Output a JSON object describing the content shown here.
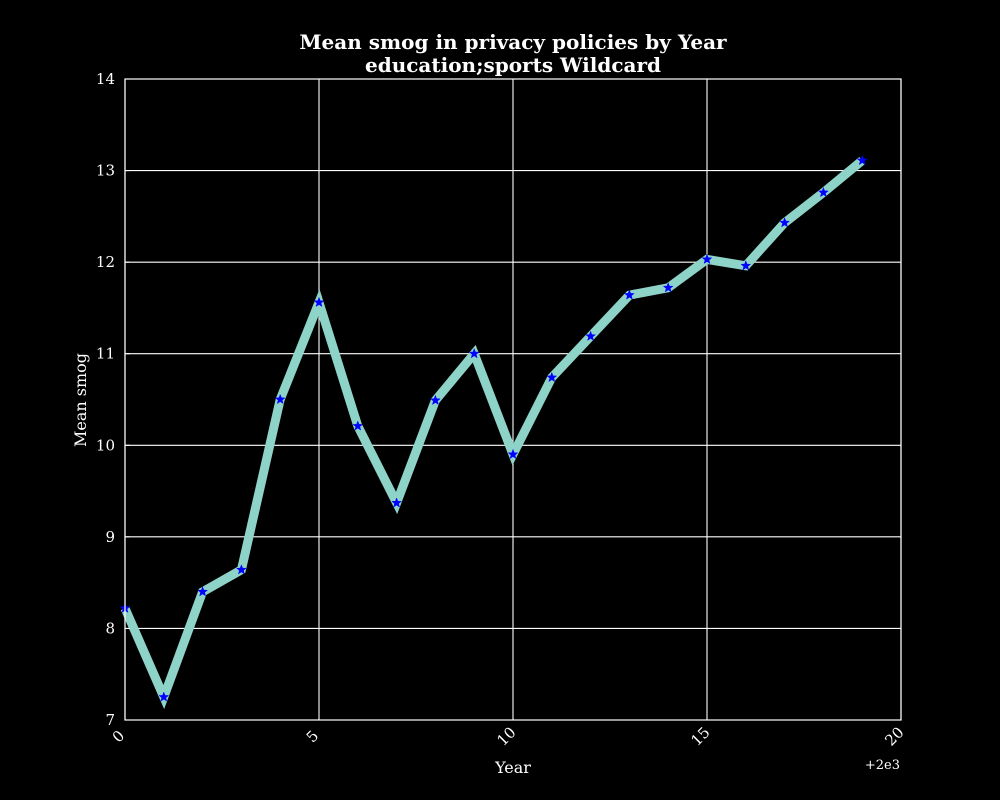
{
  "chart_data": {
    "type": "line",
    "title": "Mean smog in privacy policies by Year",
    "subtitle": "education;sports Wildcard",
    "xlabel": "Year",
    "ylabel": "Mean smog",
    "x_offset_label": "+2e3",
    "xlim": [
      0,
      20
    ],
    "ylim": [
      7,
      14
    ],
    "x_ticks": [
      "0",
      "5",
      "10",
      "15",
      "20"
    ],
    "y_ticks": [
      "7",
      "8",
      "9",
      "10",
      "11",
      "12",
      "13",
      "14"
    ],
    "grid": true,
    "series": [
      {
        "x": [
          0,
          1,
          2,
          3,
          4,
          5,
          6,
          7,
          8,
          9,
          10,
          11,
          12,
          13,
          14,
          15,
          16,
          17,
          18,
          19
        ],
        "values": [
          8.22,
          7.25,
          8.4,
          8.64,
          10.5,
          11.56,
          10.21,
          9.37,
          10.49,
          11.0,
          9.9,
          10.74,
          11.19,
          11.64,
          11.72,
          12.03,
          11.96,
          12.43,
          12.76,
          13.11
        ],
        "line_color": "#8dd3c7",
        "marker_color": "#0000ff",
        "marker": "star"
      }
    ],
    "colors": {
      "background": "#000000",
      "plot_background": "#000000",
      "foreground": "#ffffff",
      "grid": "#ffffff"
    }
  }
}
